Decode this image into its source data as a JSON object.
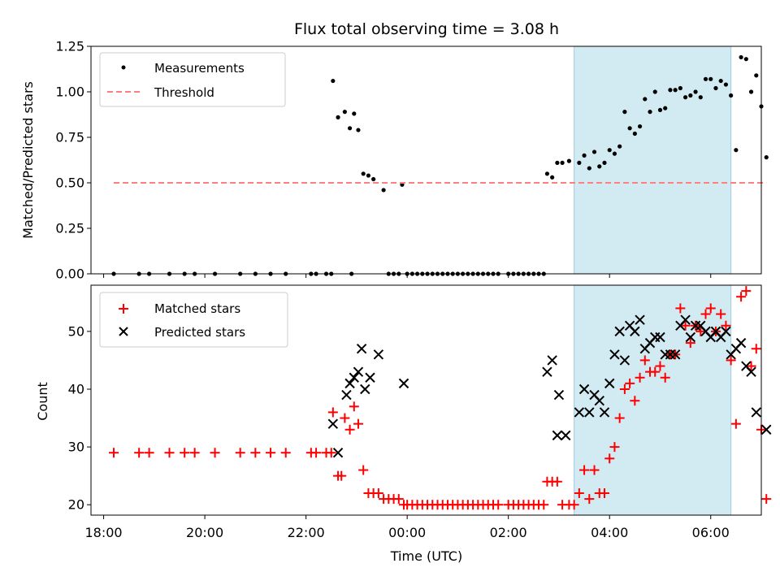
{
  "chart_data": [
    {
      "type": "scatter",
      "title": "Flux total observing time = 3.08 h",
      "ylabel": "Matched/Predicted stars",
      "xlabel": "",
      "xlim": [
        "17:45",
        "07:00"
      ],
      "ylim": [
        0,
        1.25
      ],
      "yticks": [
        0.0,
        0.25,
        0.5,
        0.75,
        1.0,
        1.25
      ],
      "ytick_labels": [
        "0.00",
        "0.25",
        "0.50",
        "0.75",
        "1.00",
        "1.25"
      ],
      "highlight_span": [
        "03:18",
        "06:24"
      ],
      "highlight_color": "#add8e6",
      "legend": {
        "position": "top-left",
        "entries": [
          "Measurements",
          "Threshold"
        ]
      },
      "series": [
        {
          "name": "Measurements",
          "color": "#000000",
          "marker": "dot",
          "points": [
            [
              "18:12",
              0
            ],
            [
              "18:42",
              0
            ],
            [
              "18:54",
              0
            ],
            [
              "19:18",
              0
            ],
            [
              "19:36",
              0
            ],
            [
              "19:48",
              0
            ],
            [
              "20:12",
              0
            ],
            [
              "20:42",
              0
            ],
            [
              "21:00",
              0
            ],
            [
              "21:18",
              0
            ],
            [
              "21:36",
              0
            ],
            [
              "22:06",
              0
            ],
            [
              "22:12",
              0
            ],
            [
              "22:24",
              0
            ],
            [
              "22:30",
              0
            ],
            [
              "22:54",
              0
            ],
            [
              "22:32",
              1.06
            ],
            [
              "22:38",
              0.86
            ],
            [
              "22:46",
              0.89
            ],
            [
              "22:52",
              0.8
            ],
            [
              "22:57",
              0.88
            ],
            [
              "23:02",
              0.79
            ],
            [
              "23:08",
              0.55
            ],
            [
              "23:14",
              0.54
            ],
            [
              "23:20",
              0.52
            ],
            [
              "23:32",
              0.46
            ],
            [
              "23:54",
              0.49
            ],
            [
              "23:38",
              0
            ],
            [
              "23:44",
              0
            ],
            [
              "23:50",
              0
            ],
            [
              "24:00",
              0
            ],
            [
              "24:06",
              0
            ],
            [
              "24:12",
              0
            ],
            [
              "24:18",
              0
            ],
            [
              "24:24",
              0
            ],
            [
              "24:30",
              0
            ],
            [
              "24:36",
              0
            ],
            [
              "24:42",
              0
            ],
            [
              "24:48",
              0
            ],
            [
              "24:54",
              0
            ],
            [
              "25:00",
              0
            ],
            [
              "25:06",
              0
            ],
            [
              "25:12",
              0
            ],
            [
              "25:18",
              0
            ],
            [
              "25:24",
              0
            ],
            [
              "25:30",
              0
            ],
            [
              "25:36",
              0
            ],
            [
              "25:42",
              0
            ],
            [
              "25:48",
              0
            ],
            [
              "26:00",
              0
            ],
            [
              "26:06",
              0
            ],
            [
              "26:12",
              0
            ],
            [
              "26:18",
              0
            ],
            [
              "26:24",
              0
            ],
            [
              "26:30",
              0
            ],
            [
              "26:36",
              0
            ],
            [
              "26:42",
              0
            ],
            [
              "26:46",
              0.55
            ],
            [
              "26:52",
              0.53
            ],
            [
              "26:58",
              0.61
            ],
            [
              "27:04",
              0.61
            ],
            [
              "27:12",
              0.62
            ],
            [
              "27:24",
              0.61
            ],
            [
              "27:30",
              0.65
            ],
            [
              "27:36",
              0.58
            ],
            [
              "27:42",
              0.67
            ],
            [
              "27:48",
              0.59
            ],
            [
              "27:54",
              0.61
            ],
            [
              "28:00",
              0.68
            ],
            [
              "28:06",
              0.66
            ],
            [
              "28:12",
              0.7
            ],
            [
              "28:18",
              0.89
            ],
            [
              "28:24",
              0.8
            ],
            [
              "28:30",
              0.77
            ],
            [
              "28:36",
              0.81
            ],
            [
              "28:42",
              0.96
            ],
            [
              "28:48",
              0.89
            ],
            [
              "28:54",
              1.0
            ],
            [
              "29:00",
              0.9
            ],
            [
              "29:06",
              0.91
            ],
            [
              "29:12",
              1.01
            ],
            [
              "29:18",
              1.01
            ],
            [
              "29:24",
              1.02
            ],
            [
              "29:30",
              0.97
            ],
            [
              "29:36",
              0.98
            ],
            [
              "29:42",
              1.0
            ],
            [
              "29:48",
              0.97
            ],
            [
              "29:54",
              1.07
            ],
            [
              "30:00",
              1.07
            ],
            [
              "30:06",
              1.02
            ],
            [
              "30:12",
              1.06
            ],
            [
              "30:18",
              1.04
            ],
            [
              "30:24",
              0.98
            ],
            [
              "30:30",
              0.68
            ],
            [
              "30:36",
              1.19
            ],
            [
              "30:42",
              1.18
            ],
            [
              "30:48",
              1.0
            ],
            [
              "30:54",
              1.09
            ],
            [
              "31:00",
              0.92
            ],
            [
              "31:06",
              0.64
            ]
          ]
        },
        {
          "name": "Threshold",
          "color": "#ff7f7f",
          "style": "dashed",
          "points": [
            [
              "18:12",
              0.5
            ],
            [
              "31:06",
              0.5
            ]
          ]
        }
      ]
    },
    {
      "type": "scatter",
      "title": "",
      "ylabel": "Count",
      "xlabel": "Time (UTC)",
      "xlim": [
        "17:45",
        "07:00"
      ],
      "ylim": [
        18.2,
        58
      ],
      "yticks": [
        20,
        30,
        40,
        50
      ],
      "ytick_labels": [
        "20",
        "30",
        "40",
        "50"
      ],
      "xticks": [
        "18:00",
        "20:00",
        "22:00",
        "00:00",
        "02:00",
        "04:00",
        "06:00"
      ],
      "highlight_span": [
        "03:18",
        "06:24"
      ],
      "highlight_color": "#add8e6",
      "legend": {
        "position": "top-left",
        "entries": [
          "Matched stars",
          "Predicted stars"
        ]
      },
      "series": [
        {
          "name": "Matched stars",
          "color": "#ff0000",
          "marker": "plus",
          "points": [
            [
              "18:12",
              29
            ],
            [
              "18:42",
              29
            ],
            [
              "18:54",
              29
            ],
            [
              "19:18",
              29
            ],
            [
              "19:36",
              29
            ],
            [
              "19:48",
              29
            ],
            [
              "20:12",
              29
            ],
            [
              "20:42",
              29
            ],
            [
              "21:00",
              29
            ],
            [
              "21:18",
              29
            ],
            [
              "21:36",
              29
            ],
            [
              "22:06",
              29
            ],
            [
              "22:12",
              29
            ],
            [
              "22:24",
              29
            ],
            [
              "22:30",
              29
            ],
            [
              "22:32",
              36
            ],
            [
              "22:38",
              25
            ],
            [
              "22:42",
              25
            ],
            [
              "22:46",
              35
            ],
            [
              "22:52",
              33
            ],
            [
              "22:57",
              37
            ],
            [
              "23:02",
              34
            ],
            [
              "23:08",
              26
            ],
            [
              "23:14",
              22
            ],
            [
              "23:20",
              22
            ],
            [
              "23:26",
              22
            ],
            [
              "23:32",
              21
            ],
            [
              "23:38",
              21
            ],
            [
              "23:44",
              21
            ],
            [
              "23:50",
              21
            ],
            [
              "23:56",
              20
            ],
            [
              "24:00",
              20
            ],
            [
              "24:06",
              20
            ],
            [
              "24:12",
              20
            ],
            [
              "24:18",
              20
            ],
            [
              "24:24",
              20
            ],
            [
              "24:30",
              20
            ],
            [
              "24:36",
              20
            ],
            [
              "24:42",
              20
            ],
            [
              "24:48",
              20
            ],
            [
              "24:54",
              20
            ],
            [
              "25:00",
              20
            ],
            [
              "25:06",
              20
            ],
            [
              "25:12",
              20
            ],
            [
              "25:18",
              20
            ],
            [
              "25:24",
              20
            ],
            [
              "25:30",
              20
            ],
            [
              "25:36",
              20
            ],
            [
              "25:42",
              20
            ],
            [
              "25:48",
              20
            ],
            [
              "26:00",
              20
            ],
            [
              "26:06",
              20
            ],
            [
              "26:12",
              20
            ],
            [
              "26:18",
              20
            ],
            [
              "26:24",
              20
            ],
            [
              "26:30",
              20
            ],
            [
              "26:36",
              20
            ],
            [
              "26:42",
              20
            ],
            [
              "26:46",
              24
            ],
            [
              "26:52",
              24
            ],
            [
              "26:58",
              24
            ],
            [
              "27:04",
              20
            ],
            [
              "27:12",
              20
            ],
            [
              "27:18",
              20
            ],
            [
              "27:24",
              22
            ],
            [
              "27:30",
              26
            ],
            [
              "27:36",
              21
            ],
            [
              "27:42",
              26
            ],
            [
              "27:48",
              22
            ],
            [
              "27:54",
              22
            ],
            [
              "28:00",
              28
            ],
            [
              "28:06",
              30
            ],
            [
              "28:12",
              35
            ],
            [
              "28:18",
              40
            ],
            [
              "28:24",
              41
            ],
            [
              "28:30",
              38
            ],
            [
              "28:36",
              42
            ],
            [
              "28:42",
              45
            ],
            [
              "28:48",
              43
            ],
            [
              "28:54",
              43
            ],
            [
              "29:00",
              44
            ],
            [
              "29:06",
              42
            ],
            [
              "29:12",
              46
            ],
            [
              "29:18",
              46
            ],
            [
              "29:24",
              54
            ],
            [
              "29:30",
              51
            ],
            [
              "29:36",
              48
            ],
            [
              "29:42",
              51
            ],
            [
              "29:48",
              50
            ],
            [
              "29:54",
              53
            ],
            [
              "30:00",
              54
            ],
            [
              "30:06",
              50
            ],
            [
              "30:12",
              53
            ],
            [
              "30:18",
              51
            ],
            [
              "30:24",
              45
            ],
            [
              "30:30",
              34
            ],
            [
              "30:36",
              56
            ],
            [
              "30:42",
              57
            ],
            [
              "30:48",
              44
            ],
            [
              "30:54",
              47
            ],
            [
              "31:00",
              33
            ],
            [
              "31:06",
              21
            ]
          ]
        },
        {
          "name": "Predicted stars",
          "color": "#000000",
          "marker": "x",
          "points": [
            [
              "22:32",
              34
            ],
            [
              "22:38",
              29
            ],
            [
              "22:48",
              39
            ],
            [
              "22:52",
              41
            ],
            [
              "22:57",
              42
            ],
            [
              "23:02",
              43
            ],
            [
              "23:06",
              47
            ],
            [
              "23:10",
              40
            ],
            [
              "23:16",
              42
            ],
            [
              "23:26",
              46
            ],
            [
              "23:56",
              41
            ],
            [
              "26:46",
              43
            ],
            [
              "26:52",
              45
            ],
            [
              "26:58",
              32
            ],
            [
              "27:00",
              39
            ],
            [
              "27:08",
              32
            ],
            [
              "27:24",
              36
            ],
            [
              "27:30",
              40
            ],
            [
              "27:36",
              36
            ],
            [
              "27:42",
              39
            ],
            [
              "27:48",
              38
            ],
            [
              "27:54",
              36
            ],
            [
              "28:00",
              41
            ],
            [
              "28:06",
              46
            ],
            [
              "28:12",
              50
            ],
            [
              "28:18",
              45
            ],
            [
              "28:24",
              51
            ],
            [
              "28:30",
              50
            ],
            [
              "28:36",
              52
            ],
            [
              "28:42",
              47
            ],
            [
              "28:48",
              48
            ],
            [
              "28:54",
              49
            ],
            [
              "29:00",
              49
            ],
            [
              "29:06",
              46
            ],
            [
              "29:12",
              46
            ],
            [
              "29:18",
              46
            ],
            [
              "29:24",
              51
            ],
            [
              "29:30",
              52
            ],
            [
              "29:36",
              49
            ],
            [
              "29:42",
              51
            ],
            [
              "29:48",
              51
            ],
            [
              "29:54",
              50
            ],
            [
              "30:00",
              49
            ],
            [
              "30:06",
              50
            ],
            [
              "30:12",
              49
            ],
            [
              "30:18",
              50
            ],
            [
              "30:24",
              46
            ],
            [
              "30:30",
              47
            ],
            [
              "30:36",
              48
            ],
            [
              "30:42",
              44
            ],
            [
              "30:48",
              43
            ],
            [
              "30:54",
              36
            ],
            [
              "31:06",
              33
            ]
          ]
        }
      ]
    }
  ]
}
